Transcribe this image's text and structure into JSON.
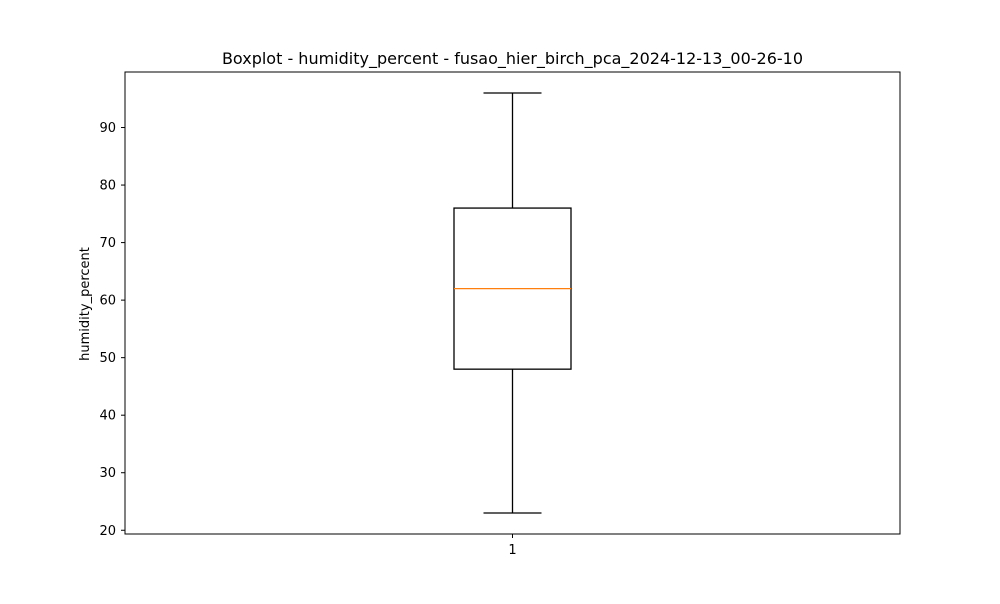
{
  "chart_data": {
    "type": "boxplot",
    "title": "Boxplot - humidity_percent - fusao_hier_birch_pca_2024-12-13_00-26-10",
    "xlabel": "",
    "ylabel": "humidity_percent",
    "categories": [
      "1"
    ],
    "boxes": [
      {
        "category": "1",
        "whisker_low": 23,
        "q1": 48,
        "median": 62,
        "q3": 76,
        "whisker_high": 96
      }
    ],
    "yticks": [
      20,
      30,
      40,
      50,
      60,
      70,
      80,
      90
    ],
    "ylim": [
      19.35,
      99.65
    ],
    "grid": false,
    "legend": "none",
    "colors": {
      "box": "#000000",
      "median": "#ff7f0e",
      "whisker": "#000000",
      "axes": "#000000"
    }
  }
}
